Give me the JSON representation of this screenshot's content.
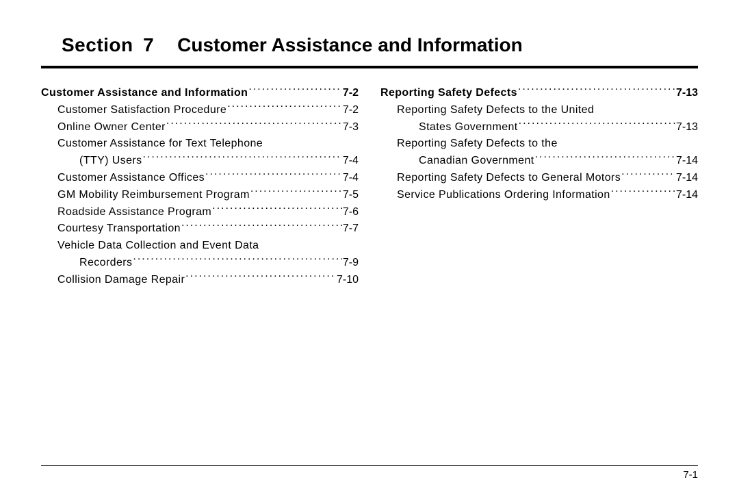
{
  "header": {
    "section_label": "Section",
    "section_number": "7",
    "section_title": "Customer Assistance and Information"
  },
  "footer": {
    "page_number": "7-1"
  },
  "left_column": [
    {
      "label": "Customer Assistance and Information",
      "page": "7-2",
      "bold": true,
      "indent": 0
    },
    {
      "label": "Customer Satisfaction Procedure",
      "page": "7-2",
      "indent": 1
    },
    {
      "label": "Online Owner Center",
      "page": "7-3",
      "indent": 1
    },
    {
      "label": "Customer Assistance for Text Telephone",
      "indent": 1,
      "noprice": true
    },
    {
      "label": "(TTY) Users",
      "page": "7-4",
      "indent": 2
    },
    {
      "label": "Customer Assistance Offices",
      "page": "7-4",
      "indent": 1
    },
    {
      "label": "GM Mobility Reimbursement Program",
      "page": "7-5",
      "indent": 1
    },
    {
      "label": "Roadside Assistance Program",
      "page": "7-6",
      "indent": 1
    },
    {
      "label": "Courtesy Transportation",
      "page": "7-7",
      "indent": 1
    },
    {
      "label": "Vehicle Data Collection and Event Data",
      "indent": 1,
      "noprice": true
    },
    {
      "label": "Recorders",
      "page": "7-9",
      "indent": 2
    },
    {
      "label": "Collision Damage Repair",
      "page": "7-10",
      "indent": 1
    }
  ],
  "right_column": [
    {
      "label": "Reporting Safety Defects",
      "page": "7-13",
      "bold": true,
      "indent": 0
    },
    {
      "label": "Reporting Safety Defects to the United",
      "indent": 1,
      "noprice": true
    },
    {
      "label": "States Government",
      "page": "7-13",
      "indent": 2
    },
    {
      "label": "Reporting Safety Defects to the",
      "indent": 1,
      "noprice": true
    },
    {
      "label": "Canadian Government",
      "page": "7-14",
      "indent": 2
    },
    {
      "label": "Reporting Safety Defects to General Motors",
      "page": "7-14",
      "indent": 1
    },
    {
      "label": "Service Publications Ordering Information",
      "page": "7-14",
      "indent": 1
    }
  ]
}
